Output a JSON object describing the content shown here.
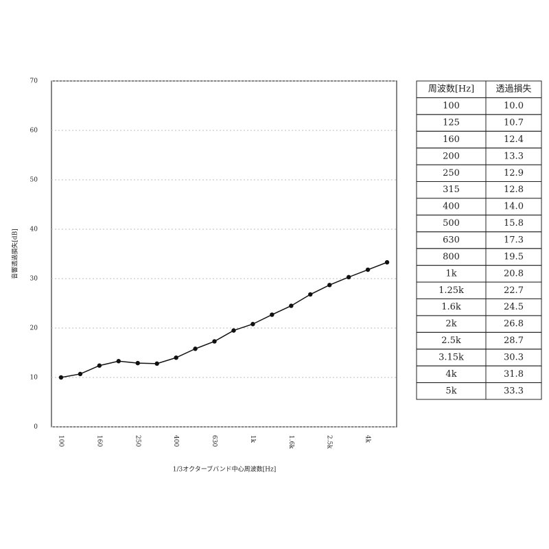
{
  "chart_data": {
    "type": "line",
    "ylabel": "音響透過損失[dB]",
    "xlabel": "1/3オクターブバンド中心周波数[Hz]",
    "categories": [
      "100",
      null,
      "160",
      null,
      "250",
      null,
      "400",
      null,
      "630",
      null,
      "1k",
      null,
      "1.6k",
      null,
      "2.5k",
      null,
      "4k",
      null
    ],
    "series": [
      {
        "color": "#111111",
        "values": [
          10.0,
          10.7,
          12.4,
          13.3,
          12.9,
          12.8,
          14.0,
          15.8,
          17.3,
          19.5,
          20.8,
          22.7,
          24.5,
          26.8,
          28.7,
          30.3,
          31.8,
          33.3
        ]
      }
    ],
    "ylim": [
      0,
      70
    ],
    "yticks": [
      0,
      10,
      20,
      30,
      40,
      50,
      60,
      70
    ],
    "grid": true
  },
  "table": {
    "header": [
      "周波数[Hz]",
      "透過損失"
    ],
    "rows": [
      [
        "100",
        "10.0"
      ],
      [
        "125",
        "10.7"
      ],
      [
        "160",
        "12.4"
      ],
      [
        "200",
        "13.3"
      ],
      [
        "250",
        "12.9"
      ],
      [
        "315",
        "12.8"
      ],
      [
        "400",
        "14.0"
      ],
      [
        "500",
        "15.8"
      ],
      [
        "630",
        "17.3"
      ],
      [
        "800",
        "19.5"
      ],
      [
        "1k",
        "20.8"
      ],
      [
        "1.25k",
        "22.7"
      ],
      [
        "1.6k",
        "24.5"
      ],
      [
        "2k",
        "26.8"
      ],
      [
        "2.5k",
        "28.7"
      ],
      [
        "3.15k",
        "30.3"
      ],
      [
        "4k",
        "31.8"
      ],
      [
        "5k",
        "33.3"
      ]
    ]
  }
}
